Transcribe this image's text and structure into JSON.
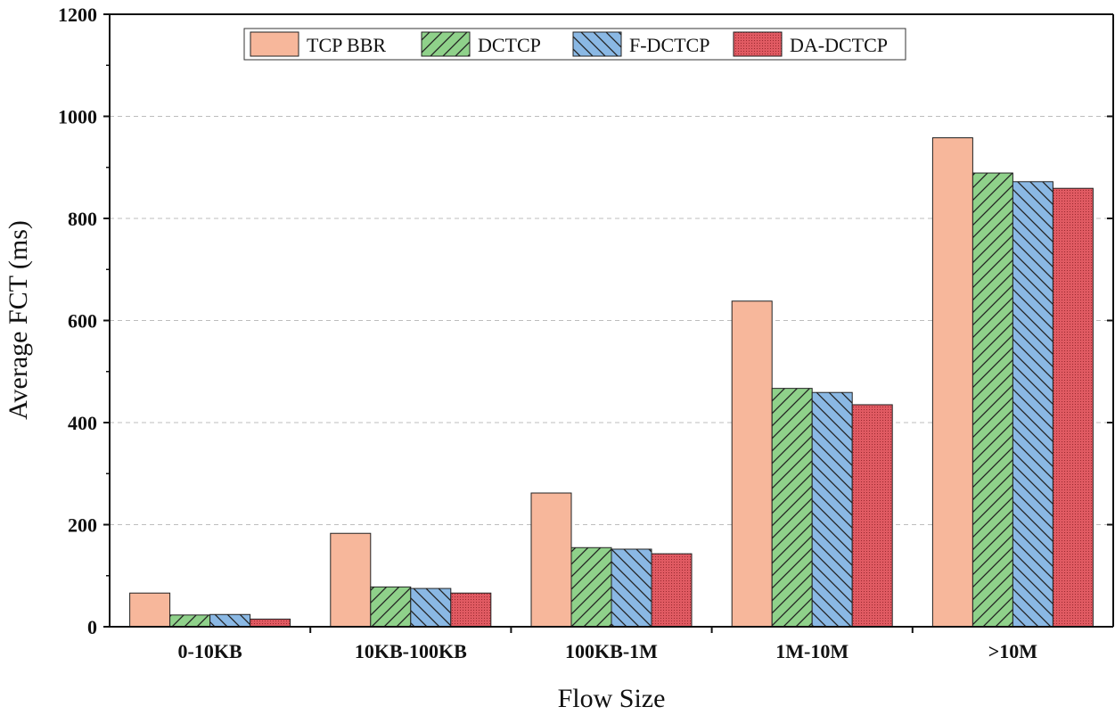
{
  "chart_data": {
    "type": "bar",
    "title": "",
    "xlabel": "Flow Size",
    "ylabel": "Average FCT (ms)",
    "ylim": [
      0,
      1200
    ],
    "yticks": [
      0,
      200,
      400,
      600,
      800,
      1000,
      1200
    ],
    "grid": "horizontal dashed at 200 unit intervals",
    "legend_position": "top",
    "categories": [
      "0-10KB",
      "10KB-100KB",
      "100KB-1M",
      "1M-10M",
      ">10M"
    ],
    "series": [
      {
        "name": "TCP BBR",
        "color": "#f7b79b",
        "pattern": "solid",
        "values": [
          66,
          183,
          262,
          638,
          958
        ]
      },
      {
        "name": "DCTCP",
        "color": "#8fd18a",
        "pattern": "diagonal",
        "values": [
          23,
          78,
          155,
          467,
          889
        ]
      },
      {
        "name": "F-DCTCP",
        "color": "#8ab8e4",
        "pattern": "backslash",
        "values": [
          24,
          75,
          152,
          459,
          872
        ]
      },
      {
        "name": "DA-DCTCP",
        "color": "#e05a62",
        "pattern": "dots",
        "values": [
          15,
          66,
          143,
          435,
          859
        ]
      }
    ]
  }
}
